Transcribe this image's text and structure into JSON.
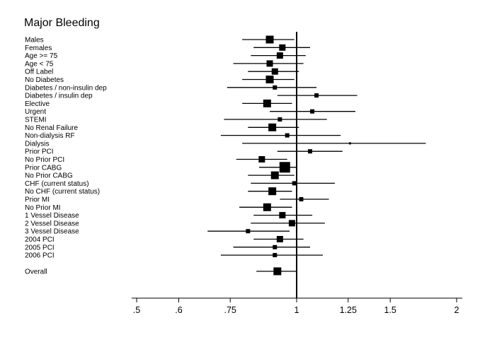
{
  "chart_data": {
    "type": "forest",
    "title": "Major Bleeding",
    "x_scale": "log",
    "xlim": [
      0.5,
      2
    ],
    "reference_line": 1,
    "ticks": [
      {
        "value": 0.5,
        "label": ".5"
      },
      {
        "value": 0.6,
        "label": ".6"
      },
      {
        "value": 0.75,
        "label": ".75"
      },
      {
        "value": 1,
        "label": "1"
      },
      {
        "value": 1.25,
        "label": "1.25"
      },
      {
        "value": 1.5,
        "label": "1.5"
      },
      {
        "value": 2,
        "label": "2"
      }
    ],
    "rows": [
      {
        "label": "Males",
        "estimate": 0.89,
        "ci": [
          0.79,
          0.99
        ],
        "marker": "large"
      },
      {
        "label": "Females",
        "estimate": 0.94,
        "ci": [
          0.83,
          1.06
        ],
        "marker": "medium"
      },
      {
        "label": "Age >= 75",
        "estimate": 0.93,
        "ci": [
          0.82,
          1.04
        ],
        "marker": "medium"
      },
      {
        "label": "Age < 75",
        "estimate": 0.89,
        "ci": [
          0.76,
          1.03
        ],
        "marker": "medium"
      },
      {
        "label": "Off Label",
        "estimate": 0.91,
        "ci": [
          0.81,
          1.01
        ],
        "marker": "medium"
      },
      {
        "label": "No Diabetes",
        "estimate": 0.89,
        "ci": [
          0.79,
          0.99
        ],
        "marker": "large"
      },
      {
        "label": "Diabetes / non-insulin dep",
        "estimate": 0.91,
        "ci": [
          0.74,
          1.09
        ],
        "marker": "small"
      },
      {
        "label": "Diabetes / insulin dep",
        "estimate": 1.09,
        "ci": [
          0.92,
          1.3
        ],
        "marker": "small"
      },
      {
        "label": "Elective",
        "estimate": 0.88,
        "ci": [
          0.79,
          0.98
        ],
        "marker": "large"
      },
      {
        "label": "Urgent",
        "estimate": 1.07,
        "ci": [
          0.89,
          1.29
        ],
        "marker": "small"
      },
      {
        "label": "STEMI",
        "estimate": 0.93,
        "ci": [
          0.73,
          1.14
        ],
        "marker": "small"
      },
      {
        "label": "No Renal Failure",
        "estimate": 0.9,
        "ci": [
          0.81,
          1.01
        ],
        "marker": "large"
      },
      {
        "label": "Non-dialysis RF",
        "estimate": 0.96,
        "ci": [
          0.72,
          1.21
        ],
        "marker": "small"
      },
      {
        "label": "Dialysis",
        "estimate": 1.26,
        "ci": [
          0.79,
          1.75
        ],
        "marker": "tiny"
      },
      {
        "label": "Prior PCI",
        "estimate": 1.06,
        "ci": [
          0.92,
          1.22
        ],
        "marker": "small"
      },
      {
        "label": "No Prior PCI",
        "estimate": 0.86,
        "ci": [
          0.77,
          0.96
        ],
        "marker": "medium"
      },
      {
        "label": "Prior CABG",
        "estimate": 0.95,
        "ci": [
          0.85,
          1.0
        ],
        "marker": "xlarge"
      },
      {
        "label": "No Prior CABG",
        "estimate": 0.91,
        "ci": [
          0.81,
          0.99
        ],
        "marker": "large"
      },
      {
        "label": "CHF (current status)",
        "estimate": 0.99,
        "ci": [
          0.82,
          1.18
        ],
        "marker": "small"
      },
      {
        "label": "No CHF (current status)",
        "estimate": 0.9,
        "ci": [
          0.81,
          0.98
        ],
        "marker": "large"
      },
      {
        "label": "Prior MI",
        "estimate": 1.02,
        "ci": [
          0.93,
          1.15
        ],
        "marker": "small"
      },
      {
        "label": "No Prior MI",
        "estimate": 0.88,
        "ci": [
          0.78,
          0.98
        ],
        "marker": "large"
      },
      {
        "label": "1 Vessel Disease",
        "estimate": 0.94,
        "ci": [
          0.83,
          1.07
        ],
        "marker": "medium"
      },
      {
        "label": "2 Vessel Disease",
        "estimate": 0.98,
        "ci": [
          0.82,
          1.13
        ],
        "marker": "medium"
      },
      {
        "label": "3 Vessel Disease",
        "estimate": 0.81,
        "ci": [
          0.68,
          0.97
        ],
        "marker": "small"
      },
      {
        "label": "2004 PCI",
        "estimate": 0.93,
        "ci": [
          0.83,
          1.03
        ],
        "marker": "medium"
      },
      {
        "label": "2005 PCI",
        "estimate": 0.91,
        "ci": [
          0.76,
          1.06
        ],
        "marker": "small"
      },
      {
        "label": "2006 PCI",
        "estimate": 0.91,
        "ci": [
          0.72,
          1.12
        ],
        "marker": "small"
      }
    ],
    "overall": {
      "label": "Overall",
      "estimate": 0.92,
      "ci": [
        0.84,
        1.0
      ],
      "marker": "large"
    }
  }
}
